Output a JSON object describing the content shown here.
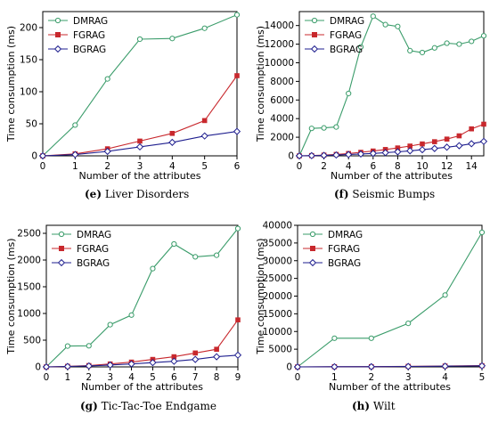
{
  "colors": {
    "DMRAG": "#3a9c6a",
    "FGRAG": "#c8282d",
    "BGRAG": "#1f1f8f"
  },
  "chart_data": [
    {
      "type": "line",
      "caption_letter": "(e)",
      "caption_text": "Liver Disorders",
      "xlabel": "Number of the attributes",
      "ylabel": "Time consumption (ms)",
      "xlim": [
        0,
        6
      ],
      "ylim": [
        0,
        225
      ],
      "xticks": [
        0,
        1,
        2,
        3,
        4,
        5,
        6
      ],
      "yticks": [
        0,
        50,
        100,
        150,
        200
      ],
      "legend": "top-left",
      "grid": false,
      "series": [
        {
          "name": "DMRAG",
          "marker": "circle",
          "x": [
            0,
            1,
            2,
            3,
            4,
            5,
            6
          ],
          "y": [
            0,
            48,
            120,
            182,
            183,
            199,
            220
          ]
        },
        {
          "name": "FGRAG",
          "marker": "square",
          "x": [
            0,
            1,
            2,
            3,
            4,
            5,
            6
          ],
          "y": [
            0,
            3,
            11,
            23,
            35,
            55,
            125
          ]
        },
        {
          "name": "BGRAG",
          "marker": "diamond",
          "x": [
            0,
            1,
            2,
            3,
            4,
            5,
            6
          ],
          "y": [
            0,
            2,
            7,
            14,
            21,
            31,
            38
          ]
        }
      ]
    },
    {
      "type": "line",
      "caption_letter": "(f)",
      "caption_text": "Seismic Bumps",
      "xlabel": "Number of the attributes",
      "ylabel": "Time consumption (ms)",
      "xlim": [
        0,
        15
      ],
      "ylim": [
        0,
        15500
      ],
      "xticks": [
        0,
        2,
        4,
        6,
        8,
        10,
        12,
        14
      ],
      "yticks": [
        0,
        2000,
        4000,
        6000,
        8000,
        10000,
        12000,
        14000
      ],
      "legend": "top-left",
      "grid": false,
      "series": [
        {
          "name": "DMRAG",
          "marker": "circle",
          "x": [
            0,
            1,
            2,
            3,
            4,
            5,
            6,
            7,
            8,
            9,
            10,
            11,
            12,
            13,
            14,
            15
          ],
          "y": [
            0,
            2950,
            3000,
            3100,
            6700,
            11700,
            15000,
            14100,
            13900,
            11300,
            11100,
            11600,
            12100,
            12000,
            12300,
            12900
          ]
        },
        {
          "name": "FGRAG",
          "marker": "square",
          "x": [
            0,
            1,
            2,
            3,
            4,
            5,
            6,
            7,
            8,
            9,
            10,
            11,
            12,
            13,
            14,
            15
          ],
          "y": [
            0,
            30,
            80,
            150,
            250,
            380,
            520,
            680,
            850,
            1050,
            1280,
            1520,
            1800,
            2150,
            2900,
            3400
          ]
        },
        {
          "name": "BGRAG",
          "marker": "diamond",
          "x": [
            0,
            1,
            2,
            3,
            4,
            5,
            6,
            7,
            8,
            9,
            10,
            11,
            12,
            13,
            14,
            15
          ],
          "y": [
            0,
            20,
            50,
            90,
            140,
            200,
            260,
            340,
            430,
            540,
            660,
            790,
            930,
            1090,
            1300,
            1550
          ]
        }
      ]
    },
    {
      "type": "line",
      "caption_letter": "(g)",
      "caption_text": "Tic-Tac-Toe Endgame",
      "xlabel": "Number of the attributes",
      "ylabel": "Time consumption (ms)",
      "xlim": [
        0,
        9
      ],
      "ylim": [
        0,
        2650
      ],
      "xticks": [
        0,
        1,
        2,
        3,
        4,
        5,
        6,
        7,
        8,
        9
      ],
      "yticks": [
        0,
        500,
        1000,
        1500,
        2000,
        2500
      ],
      "legend": "top-left",
      "grid": false,
      "series": [
        {
          "name": "DMRAG",
          "marker": "circle",
          "x": [
            0,
            1,
            2,
            3,
            4,
            5,
            6,
            7,
            8,
            9
          ],
          "y": [
            0,
            390,
            395,
            790,
            970,
            1840,
            2300,
            2060,
            2090,
            2590
          ]
        },
        {
          "name": "FGRAG",
          "marker": "square",
          "x": [
            0,
            1,
            2,
            3,
            4,
            5,
            6,
            7,
            8,
            9
          ],
          "y": [
            0,
            10,
            25,
            55,
            90,
            140,
            190,
            260,
            330,
            880
          ]
        },
        {
          "name": "BGRAG",
          "marker": "diamond",
          "x": [
            0,
            1,
            2,
            3,
            4,
            5,
            6,
            7,
            8,
            9
          ],
          "y": [
            0,
            8,
            18,
            35,
            55,
            80,
            105,
            140,
            190,
            220
          ]
        }
      ]
    },
    {
      "type": "line",
      "caption_letter": "(h)",
      "caption_text": "Wilt",
      "xlabel": "Number of the attributes",
      "ylabel": "Time consumption (ms)",
      "xlim": [
        0,
        5
      ],
      "ylim": [
        0,
        40000
      ],
      "xticks": [
        0,
        1,
        2,
        3,
        4,
        5
      ],
      "yticks": [
        0,
        5000,
        10000,
        15000,
        20000,
        25000,
        30000,
        35000,
        40000
      ],
      "legend": "top-left",
      "grid": false,
      "series": [
        {
          "name": "DMRAG",
          "marker": "circle",
          "x": [
            0,
            1,
            2,
            3,
            4,
            5
          ],
          "y": [
            0,
            8100,
            8100,
            12300,
            20300,
            38000
          ]
        },
        {
          "name": "FGRAG",
          "marker": "square",
          "x": [
            0,
            1,
            2,
            3,
            4,
            5
          ],
          "y": [
            0,
            50,
            80,
            150,
            250,
            350
          ]
        },
        {
          "name": "BGRAG",
          "marker": "diamond",
          "x": [
            0,
            1,
            2,
            3,
            4,
            5
          ],
          "y": [
            0,
            40,
            60,
            120,
            200,
            300
          ]
        }
      ]
    }
  ]
}
